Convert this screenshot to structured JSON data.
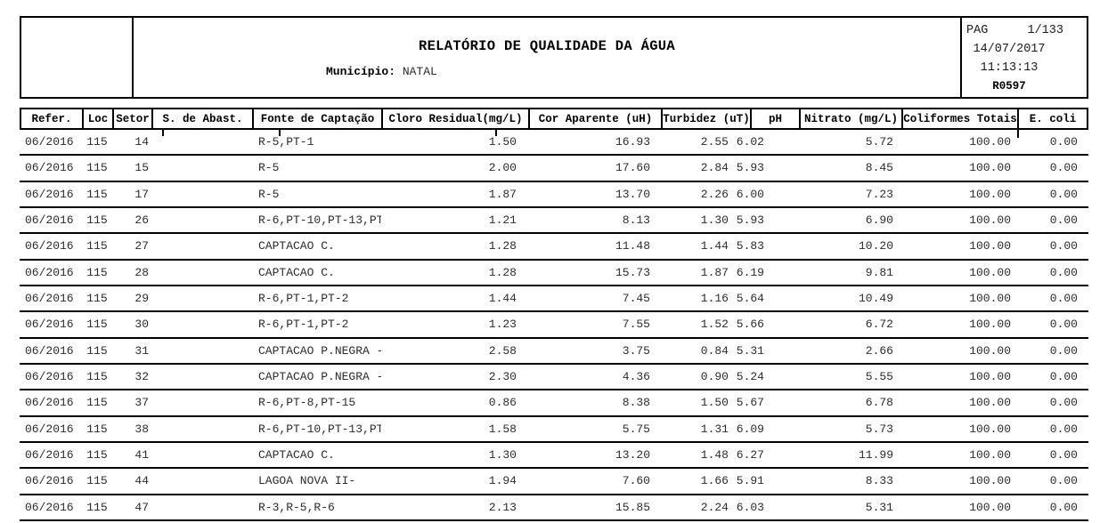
{
  "header": {
    "title": "RELATÓRIO DE QUALIDADE DA ÁGUA",
    "municipio_label": "Município:",
    "municipio_value": "NATAL",
    "page_label": "PAG",
    "page_number": "1/133",
    "date": "14/07/2017",
    "time": "11:13:13",
    "report_code": "R0597"
  },
  "table": {
    "columns": [
      "Refer.",
      "Loc",
      "Setor",
      "S. de Abast.",
      "Fonte de Captação",
      "Cloro Residual(mg/L)",
      "Cor Aparente (uH)",
      "Turbidez (uT)",
      "pH",
      "Nitrato (mg/L)",
      "Coliformes Totais",
      "E. coli"
    ],
    "rows": [
      {
        "refer": "06/2016",
        "loc": "115",
        "setor": "14",
        "s_abast": "",
        "fonte": "R-5,PT-1",
        "cloro": "1.50",
        "cor": "16.93",
        "turbidez": "2.55",
        "ph": "6.02",
        "nitrato": "5.72",
        "coliformes": "100.00",
        "ecoli": "0.00"
      },
      {
        "refer": "06/2016",
        "loc": "115",
        "setor": "15",
        "s_abast": "",
        "fonte": "R-5",
        "cloro": "2.00",
        "cor": "17.60",
        "turbidez": "2.84",
        "ph": "5.93",
        "nitrato": "8.45",
        "coliformes": "100.00",
        "ecoli": "0.00"
      },
      {
        "refer": "06/2016",
        "loc": "115",
        "setor": "17",
        "s_abast": "",
        "fonte": "R-5",
        "cloro": "1.87",
        "cor": "13.70",
        "turbidez": "2.26",
        "ph": "6.00",
        "nitrato": "7.23",
        "coliformes": "100.00",
        "ecoli": "0.00"
      },
      {
        "refer": "06/2016",
        "loc": "115",
        "setor": "26",
        "s_abast": "",
        "fonte": "R-6,PT-10,PT-13,PT",
        "cloro": "1.21",
        "cor": "8.13",
        "turbidez": "1.30",
        "ph": "5.93",
        "nitrato": "6.90",
        "coliformes": "100.00",
        "ecoli": "0.00"
      },
      {
        "refer": "06/2016",
        "loc": "115",
        "setor": "27",
        "s_abast": "",
        "fonte": "CAPTACAO C.",
        "cloro": "1.28",
        "cor": "11.48",
        "turbidez": "1.44",
        "ph": "5.83",
        "nitrato": "10.20",
        "coliformes": "100.00",
        "ecoli": "0.00"
      },
      {
        "refer": "06/2016",
        "loc": "115",
        "setor": "28",
        "s_abast": "",
        "fonte": "CAPTACAO C.",
        "cloro": "1.28",
        "cor": "15.73",
        "turbidez": "1.87",
        "ph": "6.19",
        "nitrato": "9.81",
        "coliformes": "100.00",
        "ecoli": "0.00"
      },
      {
        "refer": "06/2016",
        "loc": "115",
        "setor": "29",
        "s_abast": "",
        "fonte": "R-6,PT-1,PT-2",
        "cloro": "1.44",
        "cor": "7.45",
        "turbidez": "1.16",
        "ph": "5.64",
        "nitrato": "10.49",
        "coliformes": "100.00",
        "ecoli": "0.00"
      },
      {
        "refer": "06/2016",
        "loc": "115",
        "setor": "30",
        "s_abast": "",
        "fonte": "R-6,PT-1,PT-2",
        "cloro": "1.23",
        "cor": "7.55",
        "turbidez": "1.52",
        "ph": "5.66",
        "nitrato": "6.72",
        "coliformes": "100.00",
        "ecoli": "0.00"
      },
      {
        "refer": "06/2016",
        "loc": "115",
        "setor": "31",
        "s_abast": "",
        "fonte": "CAPTACAO P.NEGRA -",
        "cloro": "2.58",
        "cor": "3.75",
        "turbidez": "0.84",
        "ph": "5.31",
        "nitrato": "2.66",
        "coliformes": "100.00",
        "ecoli": "0.00"
      },
      {
        "refer": "06/2016",
        "loc": "115",
        "setor": "32",
        "s_abast": "",
        "fonte": "CAPTACAO P.NEGRA -",
        "cloro": "2.30",
        "cor": "4.36",
        "turbidez": "0.90",
        "ph": "5.24",
        "nitrato": "5.55",
        "coliformes": "100.00",
        "ecoli": "0.00"
      },
      {
        "refer": "06/2016",
        "loc": "115",
        "setor": "37",
        "s_abast": "",
        "fonte": "R-6,PT-8,PT-15",
        "cloro": "0.86",
        "cor": "8.38",
        "turbidez": "1.50",
        "ph": "5.67",
        "nitrato": "6.78",
        "coliformes": "100.00",
        "ecoli": "0.00"
      },
      {
        "refer": "06/2016",
        "loc": "115",
        "setor": "38",
        "s_abast": "",
        "fonte": "R-6,PT-10,PT-13,PT",
        "cloro": "1.58",
        "cor": "5.75",
        "turbidez": "1.31",
        "ph": "6.09",
        "nitrato": "5.73",
        "coliformes": "100.00",
        "ecoli": "0.00"
      },
      {
        "refer": "06/2016",
        "loc": "115",
        "setor": "41",
        "s_abast": "",
        "fonte": "CAPTACAO C.",
        "cloro": "1.30",
        "cor": "13.20",
        "turbidez": "1.48",
        "ph": "6.27",
        "nitrato": "11.99",
        "coliformes": "100.00",
        "ecoli": "0.00"
      },
      {
        "refer": "06/2016",
        "loc": "115",
        "setor": "44",
        "s_abast": "",
        "fonte": "LAGOA NOVA II-",
        "cloro": "1.94",
        "cor": "7.60",
        "turbidez": "1.66",
        "ph": "5.91",
        "nitrato": "8.33",
        "coliformes": "100.00",
        "ecoli": "0.00"
      },
      {
        "refer": "06/2016",
        "loc": "115",
        "setor": "47",
        "s_abast": "",
        "fonte": "R-3,R-5,R-6",
        "cloro": "2.13",
        "cor": "15.85",
        "turbidez": "2.24",
        "ph": "6.03",
        "nitrato": "5.31",
        "coliformes": "100.00",
        "ecoli": "0.00"
      }
    ]
  }
}
